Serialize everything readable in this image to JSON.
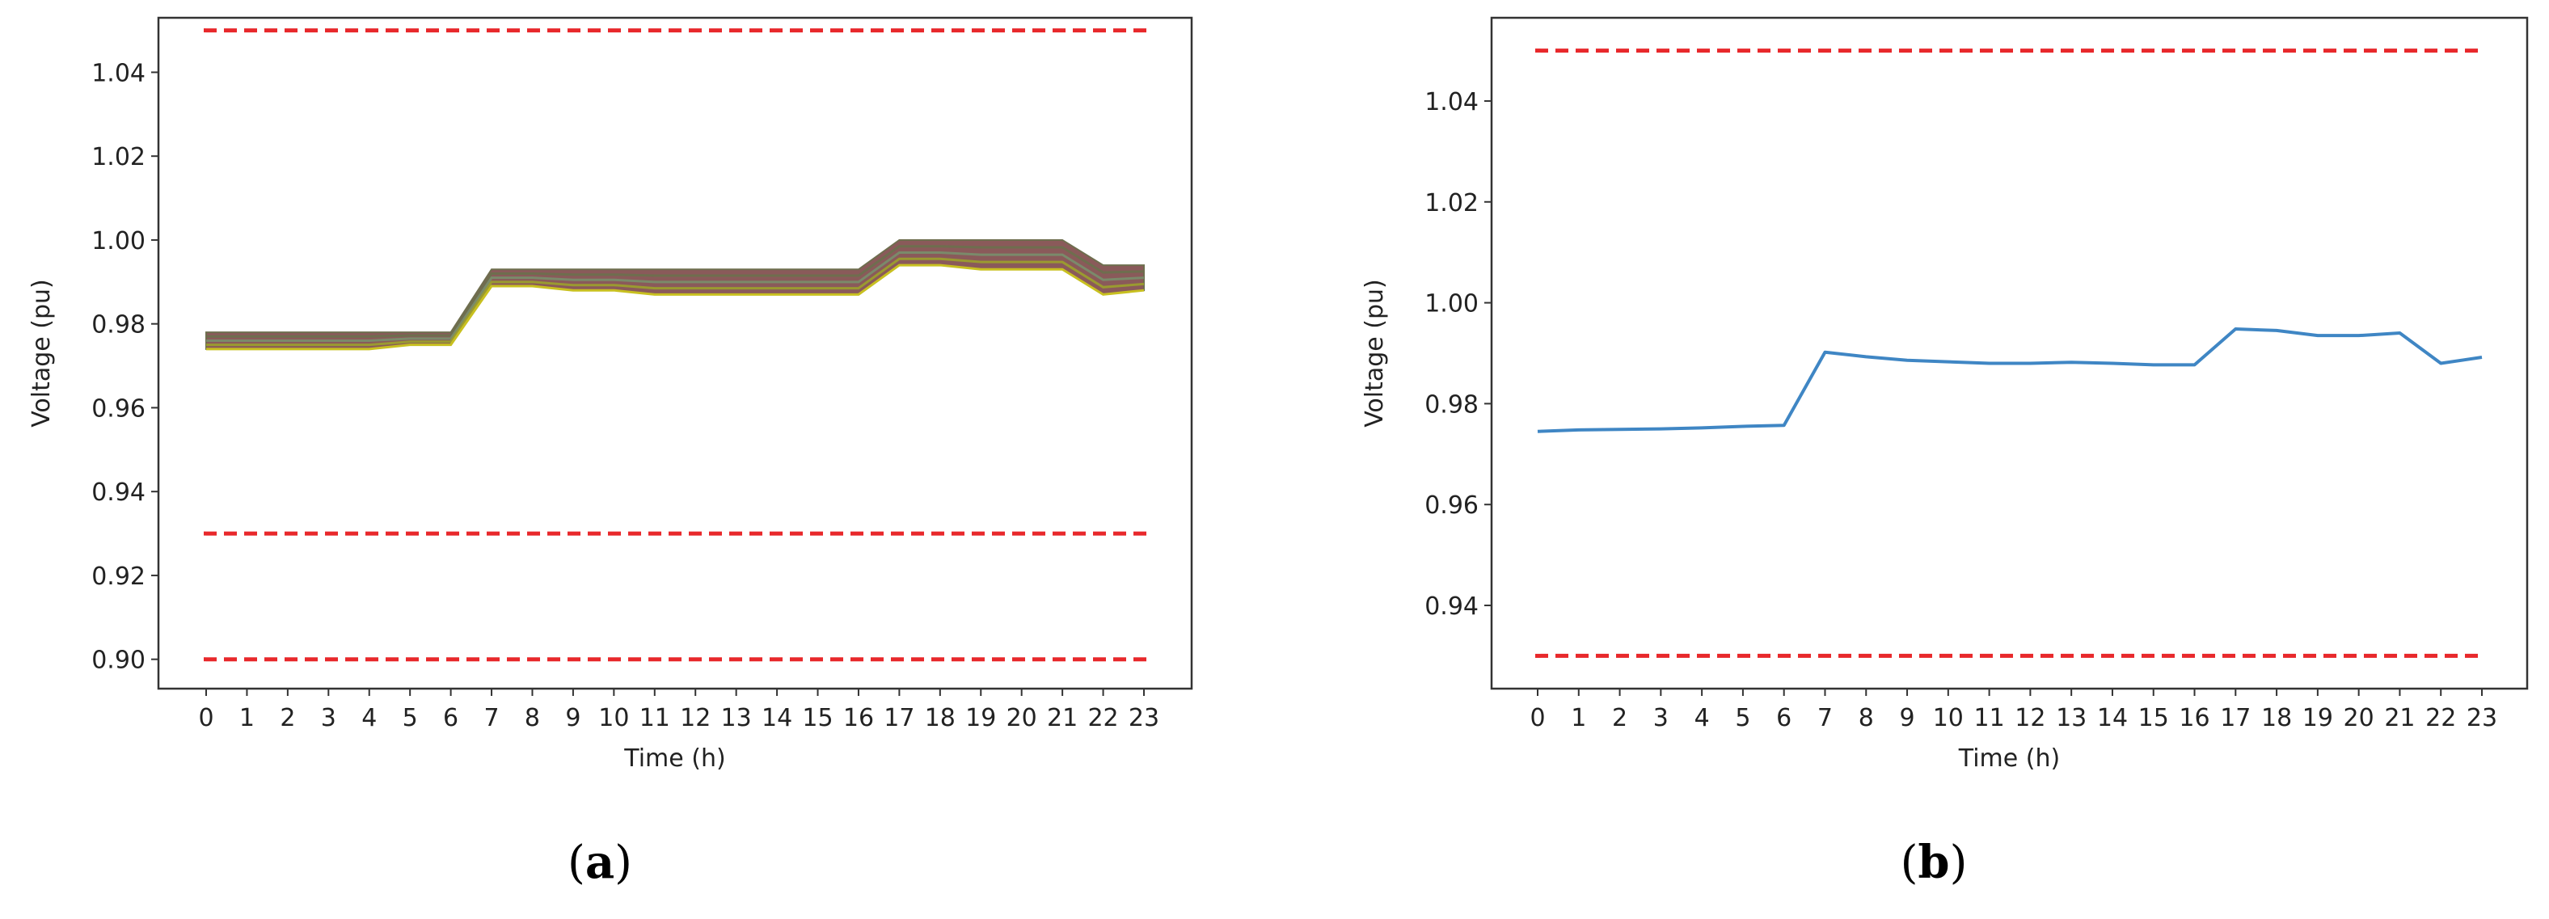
{
  "chart_data": [
    {
      "type": "line",
      "panel_label_parts": [
        "(",
        "a",
        ")"
      ],
      "xlabel": "Time (h)",
      "ylabel": "Voltage (pu)",
      "x": [
        0,
        1,
        2,
        3,
        4,
        5,
        6,
        7,
        8,
        9,
        10,
        11,
        12,
        13,
        14,
        15,
        16,
        17,
        18,
        19,
        20,
        21,
        22,
        23
      ],
      "xticks": [
        "0",
        "1",
        "2",
        "3",
        "4",
        "5",
        "6",
        "7",
        "8",
        "9",
        "10",
        "11",
        "12",
        "13",
        "14",
        "15",
        "16",
        "17",
        "18",
        "19",
        "20",
        "21",
        "22",
        "23"
      ],
      "ylim": [
        0.893,
        1.053
      ],
      "yticks": [
        "0.90",
        "0.92",
        "0.94",
        "0.96",
        "0.98",
        "1.00",
        "1.02",
        "1.04"
      ],
      "ytick_values": [
        0.9,
        0.92,
        0.94,
        0.96,
        0.98,
        1.0,
        1.02,
        1.04
      ],
      "grid": false,
      "reference_lines": [
        {
          "y": 1.05,
          "color": "#e8282b",
          "style": "dashed"
        },
        {
          "y": 0.93,
          "color": "#e8282b",
          "style": "dashed"
        },
        {
          "y": 0.9,
          "color": "#e8282b",
          "style": "dashed"
        }
      ],
      "band": {
        "upper": [
          0.978,
          0.978,
          0.978,
          0.978,
          0.978,
          0.978,
          0.978,
          0.993,
          0.993,
          0.993,
          0.993,
          0.993,
          0.993,
          0.993,
          0.993,
          0.993,
          0.993,
          1.0,
          1.0,
          1.0,
          1.0,
          1.0,
          0.994,
          0.994
        ],
        "lower": [
          0.974,
          0.974,
          0.974,
          0.974,
          0.974,
          0.975,
          0.975,
          0.989,
          0.989,
          0.988,
          0.988,
          0.987,
          0.987,
          0.987,
          0.987,
          0.987,
          0.987,
          0.994,
          0.994,
          0.993,
          0.993,
          0.993,
          0.987,
          0.988
        ],
        "colors": [
          "#8a5a5a",
          "#6e6e4e",
          "#7a8a6a",
          "#9a9a30",
          "#c8c020"
        ]
      }
    },
    {
      "type": "line",
      "panel_label_parts": [
        "(",
        "b",
        ")"
      ],
      "xlabel": "Time (h)",
      "ylabel": "Voltage (pu)",
      "x": [
        0,
        1,
        2,
        3,
        4,
        5,
        6,
        7,
        8,
        9,
        10,
        11,
        12,
        13,
        14,
        15,
        16,
        17,
        18,
        19,
        20,
        21,
        22,
        23
      ],
      "xticks": [
        "0",
        "1",
        "2",
        "3",
        "4",
        "5",
        "6",
        "7",
        "8",
        "9",
        "10",
        "11",
        "12",
        "13",
        "14",
        "15",
        "16",
        "17",
        "18",
        "19",
        "20",
        "21",
        "22",
        "23"
      ],
      "ylim": [
        0.9235,
        1.0565
      ],
      "yticks": [
        "0.94",
        "0.96",
        "0.98",
        "1.00",
        "1.02",
        "1.04"
      ],
      "ytick_values": [
        0.94,
        0.96,
        0.98,
        1.0,
        1.02,
        1.04
      ],
      "grid": false,
      "reference_lines": [
        {
          "y": 1.05,
          "color": "#e8282b",
          "style": "dashed"
        },
        {
          "y": 0.93,
          "color": "#e8282b",
          "style": "dashed"
        }
      ],
      "series": [
        {
          "color": "#3f86c4",
          "values": [
            0.9745,
            0.9748,
            0.9749,
            0.975,
            0.9752,
            0.9755,
            0.9757,
            0.9902,
            0.9893,
            0.9886,
            0.9883,
            0.988,
            0.988,
            0.9882,
            0.988,
            0.9877,
            0.9877,
            0.9948,
            0.9945,
            0.9935,
            0.9935,
            0.994,
            0.988,
            0.9892
          ]
        }
      ]
    }
  ]
}
